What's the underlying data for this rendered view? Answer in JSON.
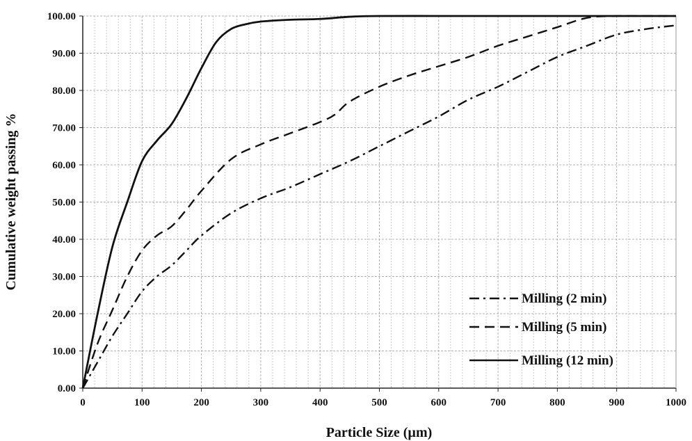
{
  "chart_data": {
    "type": "line",
    "title": "",
    "xlabel": "Particle Size (µm)",
    "ylabel": "Cumulative  weight  passing  %",
    "xlim": [
      0,
      1000
    ],
    "ylim": [
      0,
      100
    ],
    "x_ticks": [
      0,
      100,
      200,
      300,
      400,
      500,
      600,
      700,
      800,
      900,
      1000
    ],
    "x_tick_labels": [
      "0",
      "100",
      "200",
      "300",
      "400",
      "500",
      "600",
      "700",
      "800",
      "900",
      "1000"
    ],
    "y_ticks": [
      0,
      10,
      20,
      30,
      40,
      50,
      60,
      70,
      80,
      90,
      100
    ],
    "y_tick_labels": [
      "0.00",
      "10.00",
      "20.00",
      "30.00",
      "40.00",
      "50.00",
      "60.00",
      "70.00",
      "80.00",
      "90.00",
      "100.00"
    ],
    "grid": {
      "major": true,
      "minor_x": true
    },
    "legend_position": "bottom-right",
    "series": [
      {
        "name": "Milling (2 min)",
        "style": "dash-dot",
        "color": "#111111",
        "x": [
          0,
          25,
          50,
          75,
          100,
          125,
          150,
          175,
          200,
          250,
          300,
          350,
          400,
          450,
          500,
          550,
          600,
          650,
          700,
          750,
          800,
          850,
          900,
          950,
          1000
        ],
        "y": [
          0,
          7,
          14,
          20,
          26,
          30,
          33,
          37,
          41,
          47,
          51,
          54,
          57.5,
          61,
          65,
          69,
          73,
          77.5,
          81,
          85,
          89,
          92,
          95,
          96.5,
          97.5
        ]
      },
      {
        "name": "Milling (5 min)",
        "style": "dashed",
        "color": "#111111",
        "x": [
          0,
          25,
          50,
          75,
          100,
          125,
          150,
          175,
          200,
          250,
          300,
          350,
          400,
          425,
          450,
          500,
          550,
          600,
          650,
          700,
          750,
          800,
          850,
          900,
          950,
          1000
        ],
        "y": [
          0,
          12,
          21,
          30,
          37,
          41,
          43.5,
          48,
          53,
          61.5,
          65.5,
          68.5,
          71.5,
          73.5,
          77,
          81,
          84,
          86.5,
          89,
          92,
          94.5,
          97,
          99.5,
          100,
          100,
          100
        ]
      },
      {
        "name": "Milling (12 min)",
        "style": "solid",
        "color": "#111111",
        "x": [
          0,
          25,
          50,
          75,
          100,
          125,
          150,
          175,
          200,
          225,
          250,
          275,
          300,
          350,
          400,
          450,
          500,
          600,
          700,
          800,
          900,
          1000
        ],
        "y": [
          0,
          20,
          38,
          50,
          61,
          66.5,
          71,
          78,
          86,
          93,
          96.5,
          97.8,
          98.5,
          99,
          99.2,
          99.8,
          100,
          100,
          100,
          100,
          100,
          100
        ]
      }
    ]
  }
}
